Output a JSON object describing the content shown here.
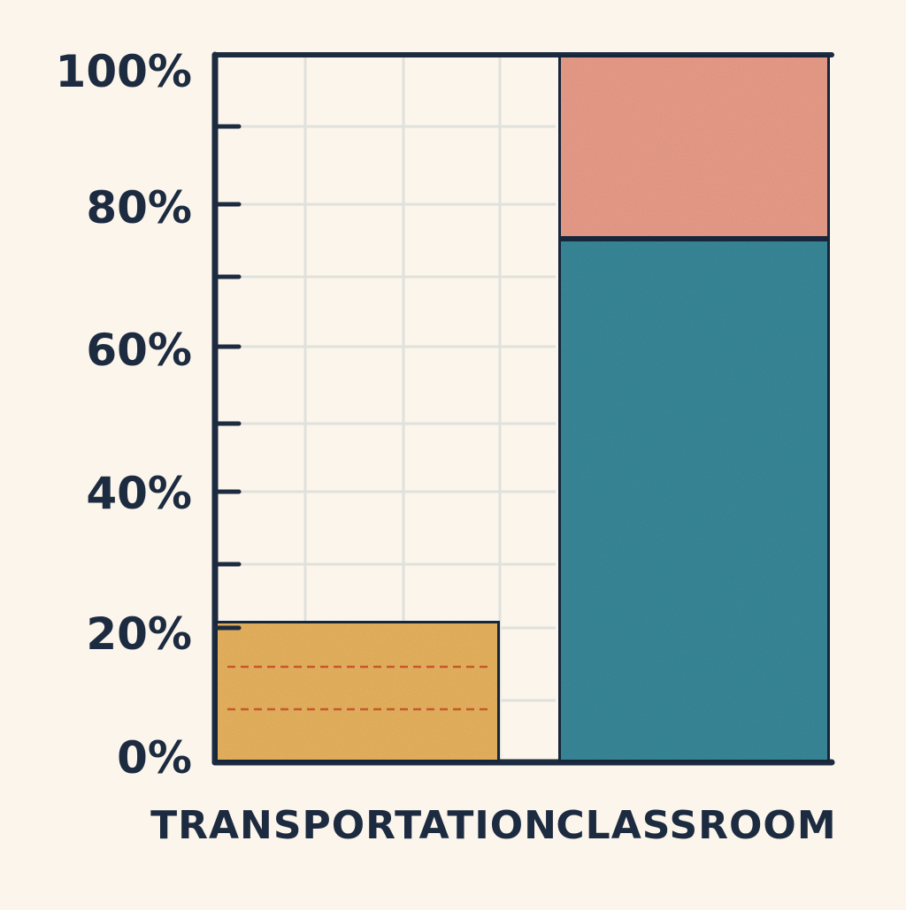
{
  "colors": {
    "background": "#fbf5eb",
    "ink": "#1d2b40",
    "grid": "#e1e1dc",
    "transportation_fill": "#eab560",
    "transportation_dash": "#c8582c",
    "classroom_main": "#3b8a9b",
    "classroom_top": "#ec9f8b"
  },
  "chart_data": {
    "type": "bar",
    "stacked": true,
    "categories": [
      "TRANSPORTATION",
      "CLASSROOM"
    ],
    "segments": [
      {
        "category": "TRANSPORTATION",
        "from": 0,
        "to": 20,
        "color": "#eab560",
        "dashed_lines_at": [
          7.5,
          13.5
        ]
      },
      {
        "category": "CLASSROOM",
        "from": 0,
        "to": 74,
        "color": "#3b8a9b"
      },
      {
        "category": "CLASSROOM",
        "from": 74,
        "to": 100,
        "color": "#ec9f8b"
      }
    ],
    "y_ticks": [
      "0%",
      "20%",
      "40%",
      "60%",
      "80%",
      "100%"
    ],
    "y_tick_values": [
      0,
      20,
      40,
      60,
      80,
      100
    ],
    "ylim": [
      0,
      100
    ],
    "grid": true,
    "legend": "none"
  }
}
